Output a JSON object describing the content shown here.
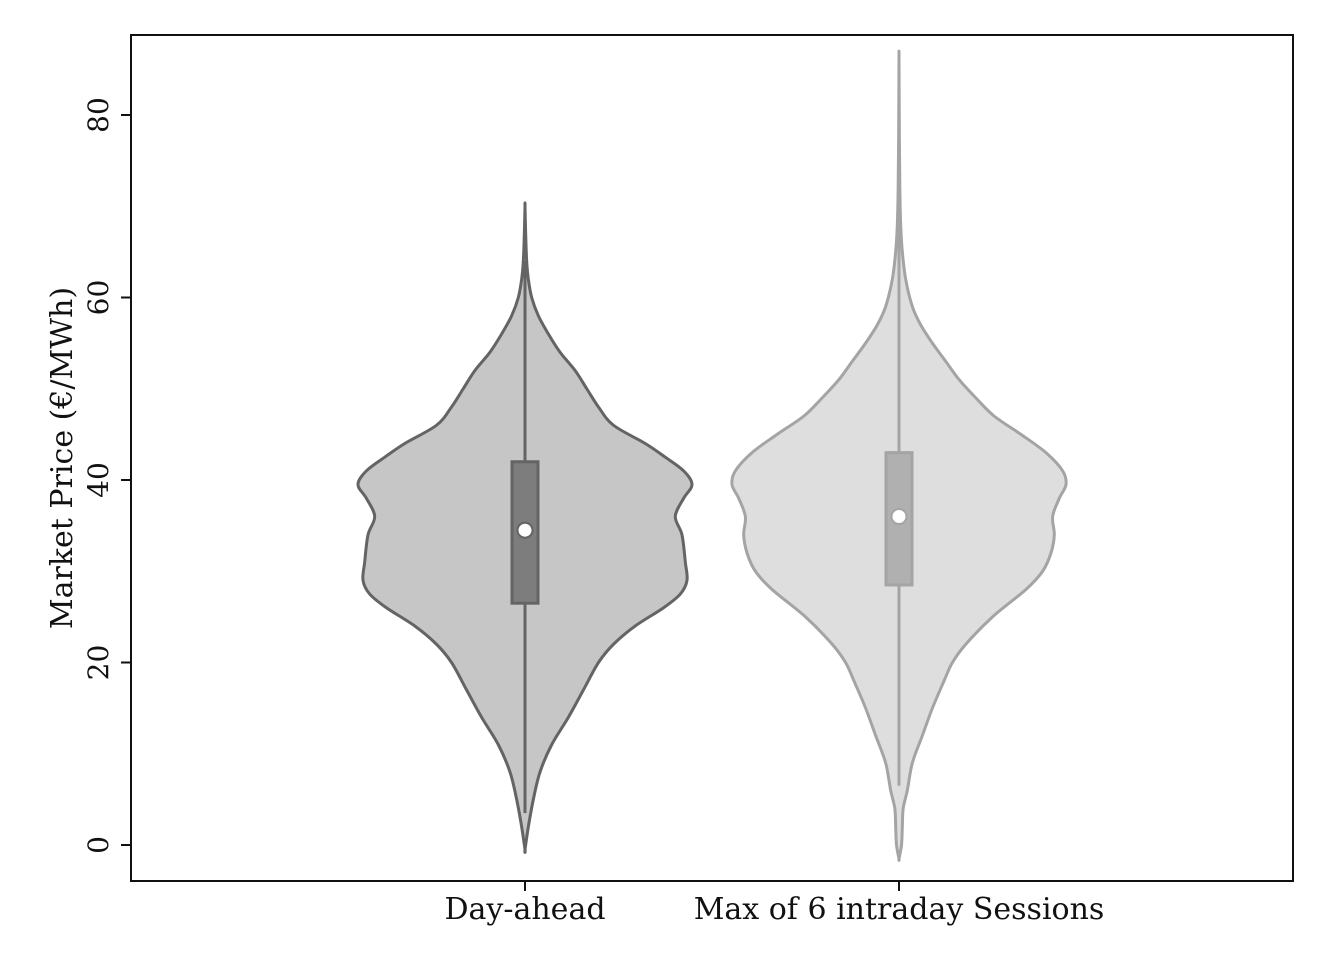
{
  "chart_data": {
    "type": "violin",
    "ylabel": "Market Price (€/MWh)",
    "xlabel": "",
    "ylim": [
      -4,
      88
    ],
    "yticks": [
      0,
      20,
      40,
      60,
      80
    ],
    "ytick_labels": [
      "0",
      "20",
      "40",
      "60",
      "80"
    ],
    "grid": false,
    "categories": [
      "Day-ahead",
      "Max of 6 intraday Sessions"
    ],
    "series": [
      {
        "category": "Day-ahead",
        "fill_color": "#c6c6c6",
        "line_color": "#646464",
        "box_color": "#7d7d7d",
        "min": -0.5,
        "max": 70,
        "whisker_low": 3.5,
        "whisker_high": 64,
        "q1": 26.5,
        "median": 34.5,
        "q3": 42,
        "density": [
          [
            -0.5,
            0.0
          ],
          [
            2,
            0.02
          ],
          [
            5,
            0.05
          ],
          [
            8,
            0.09
          ],
          [
            11,
            0.16
          ],
          [
            14,
            0.26
          ],
          [
            17,
            0.35
          ],
          [
            20,
            0.44
          ],
          [
            22,
            0.53
          ],
          [
            24,
            0.66
          ],
          [
            26,
            0.83
          ],
          [
            27.5,
            0.93
          ],
          [
            29,
            0.97
          ],
          [
            31,
            0.96
          ],
          [
            34,
            0.94
          ],
          [
            36,
            0.9
          ],
          [
            38,
            0.95
          ],
          [
            39.5,
            1.0
          ],
          [
            41,
            0.95
          ],
          [
            42.5,
            0.84
          ],
          [
            44,
            0.72
          ],
          [
            46,
            0.53
          ],
          [
            48,
            0.44
          ],
          [
            50,
            0.37
          ],
          [
            52,
            0.3
          ],
          [
            54,
            0.21
          ],
          [
            56,
            0.14
          ],
          [
            58,
            0.08
          ],
          [
            60,
            0.04
          ],
          [
            62,
            0.02
          ],
          [
            64,
            0.01
          ],
          [
            67,
            0.004
          ],
          [
            70,
            0.0
          ]
        ]
      },
      {
        "category": "Max of 6 intraday Sessions",
        "fill_color": "#dedede",
        "line_color": "#a4a4a4",
        "box_color": "#b0b0b0",
        "min": -1.5,
        "max": 86,
        "whisker_low": 6.5,
        "whisker_high": 72,
        "q1": 28.5,
        "median": 36,
        "q3": 43,
        "density": [
          [
            -1.5,
            0.0
          ],
          [
            0,
            0.015
          ],
          [
            2,
            0.02
          ],
          [
            4,
            0.025
          ],
          [
            6,
            0.05
          ],
          [
            9,
            0.08
          ],
          [
            12,
            0.14
          ],
          [
            15,
            0.2
          ],
          [
            18,
            0.27
          ],
          [
            20,
            0.32
          ],
          [
            22,
            0.4
          ],
          [
            25,
            0.56
          ],
          [
            28,
            0.76
          ],
          [
            30,
            0.86
          ],
          [
            32,
            0.91
          ],
          [
            34,
            0.93
          ],
          [
            36,
            0.92
          ],
          [
            38,
            0.96
          ],
          [
            39.5,
            1.0
          ],
          [
            41,
            0.98
          ],
          [
            43,
            0.88
          ],
          [
            45,
            0.73
          ],
          [
            47,
            0.57
          ],
          [
            49,
            0.46
          ],
          [
            51,
            0.36
          ],
          [
            53,
            0.28
          ],
          [
            55,
            0.2
          ],
          [
            57,
            0.13
          ],
          [
            59,
            0.08
          ],
          [
            62,
            0.04
          ],
          [
            65,
            0.02
          ],
          [
            68,
            0.01
          ],
          [
            72,
            0.005
          ],
          [
            78,
            0.002
          ],
          [
            86,
            0.0
          ]
        ]
      }
    ]
  }
}
